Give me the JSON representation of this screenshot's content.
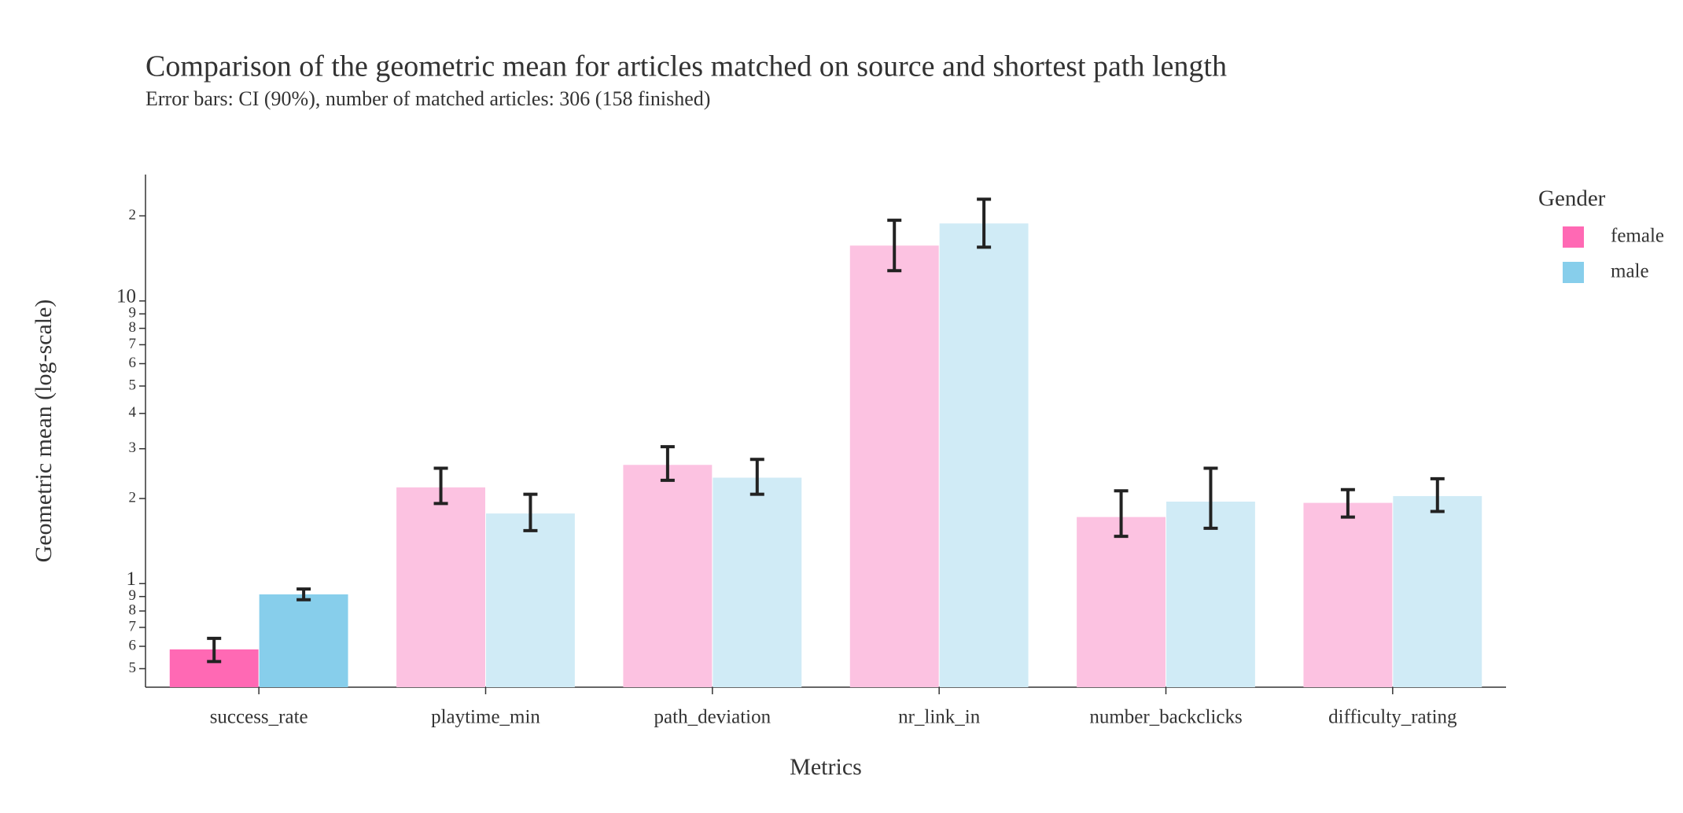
{
  "chart_data": {
    "type": "bar",
    "title": "Comparison of the geometric mean for articles matched on source and shortest path length",
    "subtitle": "Error bars: CI (90%), number of matched articles: 306 (158 finished)",
    "x_label": "Metrics",
    "y_label": "Geometric mean (log-scale)",
    "legend_title": "Gender",
    "legend_position": "right",
    "y_scale": "log",
    "categories": [
      "success_rate",
      "playtime_min",
      "path_deviation",
      "nr_link_in",
      "number_backclicks",
      "difficulty_rating"
    ],
    "series": [
      {
        "name": "female",
        "color": "#ff69b4",
        "colors": [
          "#ff69b4",
          "#fcc2e1",
          "#fcc2e1",
          "#fcc2e1",
          "#fcc2e1",
          "#fcc2e1"
        ],
        "values": [
          0.585,
          2.19,
          2.63,
          15.7,
          1.72,
          1.93
        ],
        "error_upper": [
          0.64,
          2.56,
          3.05,
          19.3,
          2.13,
          2.15
        ],
        "error_lower": [
          0.53,
          1.92,
          2.32,
          12.8,
          1.47,
          1.72
        ]
      },
      {
        "name": "male",
        "color": "#87ceeb",
        "colors": [
          "#87ceeb",
          "#d0ebf6",
          "#d0ebf6",
          "#d0ebf6",
          "#d0ebf6",
          "#d0ebf6"
        ],
        "values": [
          0.916,
          1.77,
          2.37,
          18.8,
          1.95,
          2.04
        ],
        "error_upper": [
          0.957,
          2.07,
          2.75,
          22.9,
          2.56,
          2.35
        ],
        "error_lower": [
          0.877,
          1.54,
          2.07,
          15.5,
          1.57,
          1.8
        ]
      }
    ],
    "ylim": [
      0.43,
      28
    ],
    "yticks": [
      {
        "value": 0.5,
        "label": "5"
      },
      {
        "value": 0.6,
        "label": "6"
      },
      {
        "value": 0.7,
        "label": "7"
      },
      {
        "value": 0.8,
        "label": "8"
      },
      {
        "value": 0.9,
        "label": "9"
      },
      1,
      2,
      3,
      4,
      5,
      6,
      7,
      8,
      9,
      10,
      {
        "value": 20,
        "label": "2"
      }
    ],
    "grid": false
  }
}
